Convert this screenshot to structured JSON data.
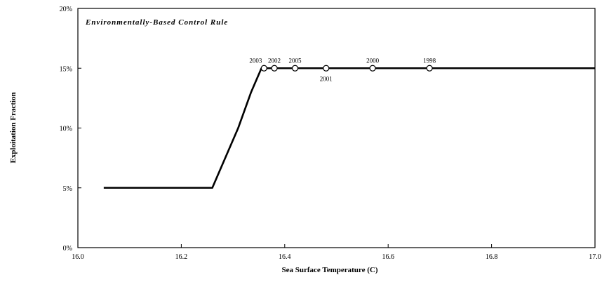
{
  "chart_data": {
    "type": "line",
    "title": "Environmentally-Based Control Rule",
    "xlabel": "Sea Surface Temperature (C)",
    "ylabel": "Exploitation Fraction",
    "xlim": [
      16.0,
      17.0
    ],
    "ylim": [
      0.0,
      0.2
    ],
    "x_ticks": [
      16.0,
      16.2,
      16.4,
      16.6,
      16.8,
      17.0
    ],
    "x_tick_labels": [
      "16.0",
      "16.2",
      "16.4",
      "16.6",
      "16.8",
      "17.0"
    ],
    "y_ticks": [
      0.0,
      0.05,
      0.1,
      0.15,
      0.2
    ],
    "y_tick_labels": [
      "0%",
      "5%",
      "10%",
      "15%",
      "20%"
    ],
    "grid": false,
    "legend": "none",
    "series": [
      {
        "style": "thick-line",
        "color": "#000000",
        "points": [
          {
            "x": 16.05,
            "y": 0.05
          },
          {
            "x": 16.26,
            "y": 0.05
          },
          {
            "x": 16.28,
            "y": 0.07
          },
          {
            "x": 16.31,
            "y": 0.1
          },
          {
            "x": 16.335,
            "y": 0.13
          },
          {
            "x": 16.355,
            "y": 0.15
          },
          {
            "x": 17.0,
            "y": 0.15
          }
        ]
      },
      {
        "style": "thin-line-markers",
        "color": "#000000",
        "points": [
          {
            "x": 16.36,
            "y": 0.15,
            "label": "2003"
          },
          {
            "x": 16.38,
            "y": 0.15,
            "label": "2002"
          },
          {
            "x": 16.42,
            "y": 0.15,
            "label": "2005"
          },
          {
            "x": 16.48,
            "y": 0.15,
            "label": "2001"
          },
          {
            "x": 16.57,
            "y": 0.15,
            "label": "2000"
          },
          {
            "x": 16.68,
            "y": 0.15,
            "label": "1998"
          },
          {
            "x": 17.0,
            "y": 0.15
          }
        ]
      }
    ]
  }
}
